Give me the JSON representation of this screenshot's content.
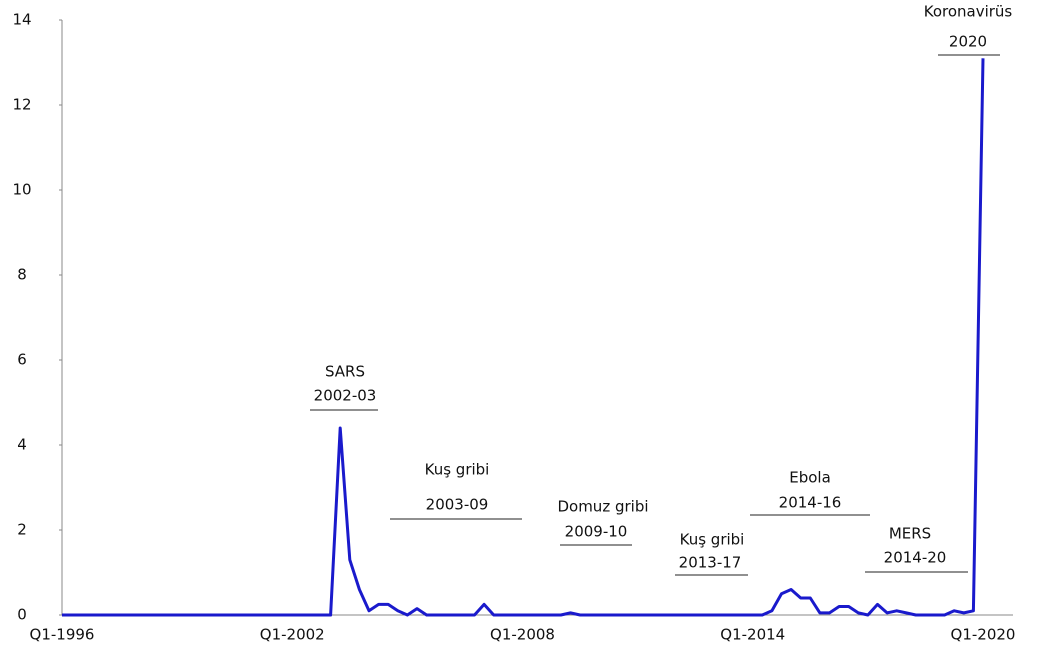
{
  "chart_data": {
    "type": "line",
    "categories": [
      "Q1-1996",
      null,
      null,
      null,
      null,
      null,
      null,
      null,
      null,
      null,
      null,
      null,
      null,
      null,
      null,
      null,
      null,
      null,
      null,
      null,
      null,
      null,
      null,
      null,
      "Q1-2002",
      null,
      null,
      null,
      null,
      null,
      null,
      null,
      null,
      null,
      null,
      null,
      null,
      null,
      null,
      null,
      null,
      null,
      null,
      null,
      null,
      null,
      null,
      null,
      "Q1-2008",
      null,
      null,
      null,
      null,
      null,
      null,
      null,
      null,
      null,
      null,
      null,
      null,
      null,
      null,
      null,
      null,
      null,
      null,
      null,
      null,
      null,
      null,
      null,
      "Q1-2014",
      null,
      null,
      null,
      null,
      null,
      null,
      null,
      null,
      null,
      null,
      null,
      null,
      null,
      null,
      null,
      null,
      null,
      null,
      null,
      null,
      null,
      null,
      null,
      "Q1-2020"
    ],
    "values": [
      0,
      0,
      0,
      0,
      0,
      0,
      0,
      0,
      0,
      0,
      0,
      0,
      0,
      0,
      0,
      0,
      0,
      0,
      0,
      0,
      0,
      0,
      0,
      0,
      0,
      0,
      0,
      0,
      0,
      4.4,
      1.3,
      0.6,
      0.1,
      0.25,
      0.25,
      0.1,
      0,
      0.15,
      0,
      0,
      0,
      0,
      0,
      0,
      0.25,
      0,
      0,
      0,
      0,
      0,
      0,
      0,
      0,
      0.05,
      0,
      0,
      0,
      0,
      0,
      0,
      0,
      0,
      0,
      0,
      0,
      0,
      0,
      0,
      0,
      0,
      0,
      0,
      0,
      0,
      0.1,
      0.5,
      0.6,
      0.4,
      0.4,
      0.05,
      0.05,
      0.2,
      0.2,
      0.05,
      0,
      0.25,
      0.05,
      0.1,
      0.05,
      0,
      0,
      0,
      0,
      0.1,
      0.05,
      0.1,
      13.1
    ],
    "color": "#1a1acc",
    "ylim": [
      0,
      14
    ],
    "yticks": [
      0,
      2,
      4,
      6,
      8,
      10,
      12,
      14
    ],
    "grid": false,
    "annotations": [
      {
        "label": "SARS",
        "period": "2002-03"
      },
      {
        "label": "Kuş gribi",
        "period": "2003-09"
      },
      {
        "label": "Domuz gribi",
        "period": "2009-10"
      },
      {
        "label": "Kuş gribi",
        "period": "2013-17"
      },
      {
        "label": "Ebola",
        "period": "2014-16"
      },
      {
        "label": "MERS",
        "period": "2014-20"
      },
      {
        "label": "Koronavirüs",
        "period": "2020"
      }
    ]
  }
}
